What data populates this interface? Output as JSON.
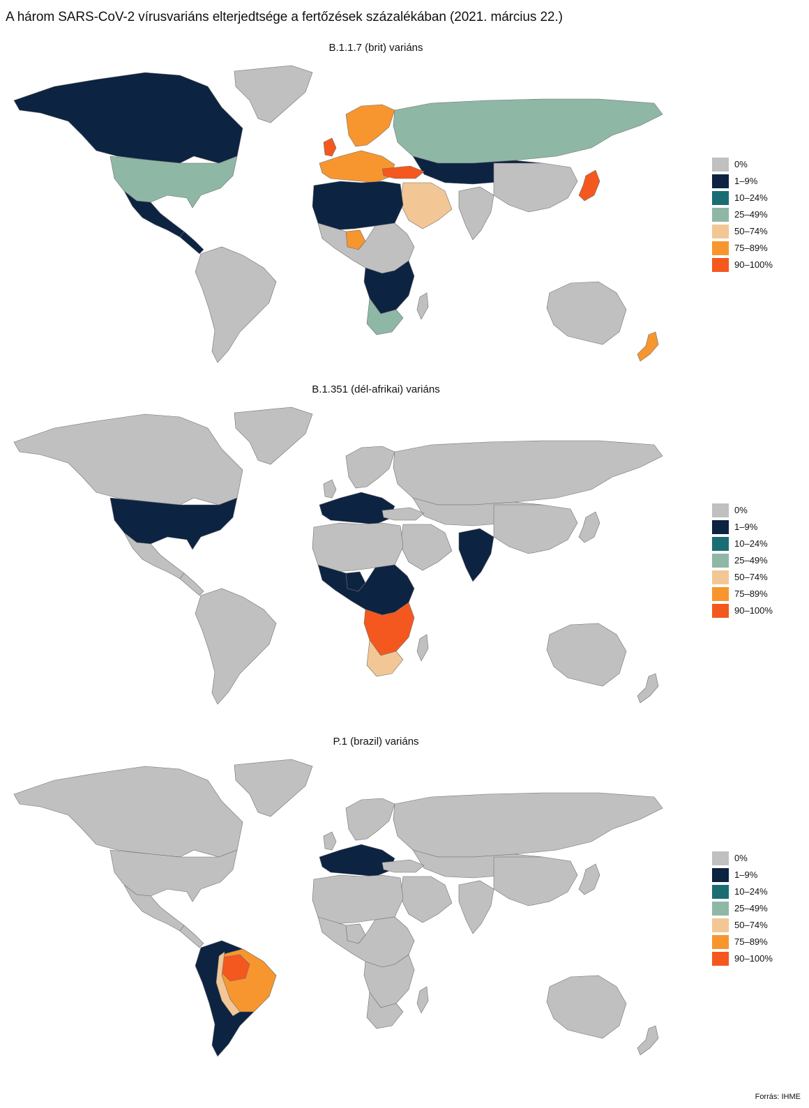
{
  "title": "A három SARS-CoV-2 vírusvariáns elterjedtsége a fertőzések százalékában (2021. március 22.)",
  "source": "Forrás: IHME",
  "legend": [
    {
      "label": "0%",
      "color": "#c0c0c0"
    },
    {
      "label": "1–9%",
      "color": "#0d2342"
    },
    {
      "label": "10–24%",
      "color": "#1a6e73"
    },
    {
      "label": "25–49%",
      "color": "#8fb7a6"
    },
    {
      "label": "50–74%",
      "color": "#f2c795"
    },
    {
      "label": "75–89%",
      "color": "#f7962f"
    },
    {
      "label": "90–100%",
      "color": "#f4581e"
    }
  ],
  "panels": [
    {
      "title": "B.1.1.7 (brit) variáns",
      "regions": {
        "north_america": "1–9%",
        "usa": "25–49%",
        "mexico": "1–9%",
        "south_america": "0%",
        "greenland": "0%",
        "europe_west": "75–89%",
        "uk": "90–100%",
        "scandinavia": "75–89%",
        "russia": "25–49%",
        "central_asia": "1–9%",
        "turkey": "90–100%",
        "middle_east": "50–74%",
        "north_africa": "1–9%",
        "central_africa": "0%",
        "southern_africa": "1–9%",
        "south_africa": "25–49%",
        "nigeria": "75–89%",
        "india": "0%",
        "china": "0%",
        "japan": "90–100%",
        "australia": "0%",
        "new_zealand": "75–89%"
      }
    },
    {
      "title": "B.1.351 (dél-afrikai) variáns",
      "regions": {
        "north_america": "0%",
        "usa": "1–9%",
        "mexico": "0%",
        "south_america": "0%",
        "greenland": "0%",
        "europe_west": "1–9%",
        "uk": "0%",
        "scandinavia": "0%",
        "russia": "0%",
        "central_asia": "0%",
        "turkey": "0%",
        "middle_east": "0%",
        "north_africa": "0%",
        "central_africa": "1–9%",
        "southern_africa": "90–100%",
        "south_africa": "50–74%",
        "nigeria": "1–9%",
        "india": "1–9%",
        "china": "0%",
        "japan": "0%",
        "australia": "0%",
        "new_zealand": "0%"
      }
    },
    {
      "title": "P.1 (brazil) variáns",
      "regions": {
        "north_america": "0%",
        "usa": "0%",
        "mexico": "0%",
        "south_america": "1–9%",
        "brazil": "75–89%",
        "brazil_north": "90–100%",
        "brazil_ring": "50–74%",
        "greenland": "0%",
        "europe_west": "1–9%",
        "uk": "0%",
        "scandinavia": "0%",
        "russia": "0%",
        "central_asia": "0%",
        "turkey": "0%",
        "middle_east": "0%",
        "north_africa": "0%",
        "central_africa": "0%",
        "southern_africa": "0%",
        "south_africa": "0%",
        "nigeria": "0%",
        "india": "0%",
        "china": "0%",
        "japan": "0%",
        "australia": "0%",
        "new_zealand": "0%"
      }
    }
  ]
}
